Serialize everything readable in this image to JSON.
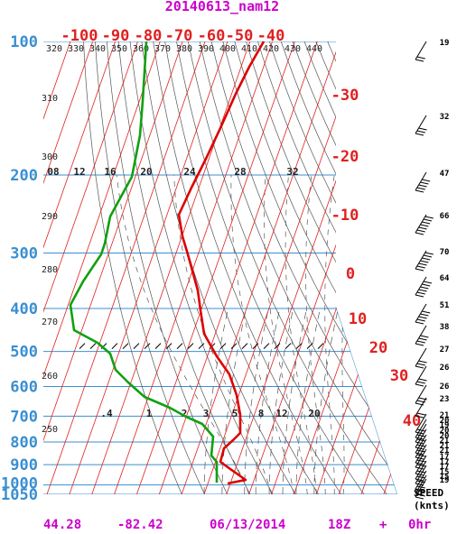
{
  "title": "20140613_nam12",
  "footer": {
    "lat": "44.28",
    "lon": "-82.42",
    "date": "06/13/2014",
    "hour": "18Z",
    "plus": "+",
    "fhr": "0hr"
  },
  "speed_label": [
    "SPEED",
    "(knts)"
  ],
  "colors": {
    "title": "#cc00cc",
    "pressure_axis": "#3a8fd0",
    "isotherm": "#e02020",
    "temperature": "#dd0000",
    "dewpoint": "#11a011",
    "dry_adiabat": "#555555",
    "isobar": "#3a8fd0",
    "mixing_ratio": "#555555",
    "moist_adiabat": "#555555"
  },
  "chart_data": {
    "type": "line",
    "title": "20140613_nam12",
    "y_axis": {
      "label": "pressure",
      "units": "hPa",
      "scale": "log",
      "ticks": [
        100,
        200,
        300,
        400,
        500,
        600,
        700,
        800,
        900,
        1000,
        1050
      ]
    },
    "temperature_ticks": [
      -100,
      -90,
      -80,
      -70,
      -60,
      -50,
      -40,
      -30,
      -20,
      -10,
      0,
      10,
      20,
      30,
      40
    ],
    "theta_labels": [
      320,
      330,
      340,
      350,
      360,
      370,
      380,
      390,
      400,
      410,
      420,
      430,
      440
    ],
    "theta_side_labels": [
      310,
      300,
      290,
      280,
      270,
      260,
      250
    ],
    "mixing_ratio_top_labels": [
      "08",
      "12",
      "16",
      "20",
      "24",
      "28",
      "32"
    ],
    "mixing_ratio_bottom_labels": [
      ".4",
      "1",
      "2",
      "3",
      "5",
      "8",
      "12",
      "20"
    ],
    "series": [
      {
        "name": "temperature",
        "points": [
          {
            "p": 100,
            "t": -52
          },
          {
            "p": 150,
            "t": -54
          },
          {
            "p": 200,
            "t": -57
          },
          {
            "p": 230,
            "t": -60
          },
          {
            "p": 250,
            "t": -61
          },
          {
            "p": 280,
            "t": -58
          },
          {
            "p": 300,
            "t": -54
          },
          {
            "p": 400,
            "t": -35
          },
          {
            "p": 450,
            "t": -27
          },
          {
            "p": 500,
            "t": -19
          },
          {
            "p": 600,
            "t": -9
          },
          {
            "p": 650,
            "t": -5
          },
          {
            "p": 700,
            "t": -1
          },
          {
            "p": 750,
            "t": 3
          },
          {
            "p": 780,
            "t": 5
          },
          {
            "p": 800,
            "t": 5
          },
          {
            "p": 850,
            "t": 8
          },
          {
            "p": 900,
            "t": 12
          },
          {
            "p": 930,
            "t": 16
          },
          {
            "p": 960,
            "t": 18
          },
          {
            "p": 980,
            "t": 24
          },
          {
            "p": 1000,
            "t": 22
          },
          {
            "p": 1005,
            "t": 19
          }
        ]
      },
      {
        "name": "dewpoint",
        "points": [
          {
            "p": 100,
            "t": -70
          },
          {
            "p": 150,
            "t": -71
          },
          {
            "p": 200,
            "t": -68
          },
          {
            "p": 250,
            "t": -73
          },
          {
            "p": 300,
            "t": -74
          },
          {
            "p": 350,
            "t": -77
          },
          {
            "p": 400,
            "t": -76
          },
          {
            "p": 450,
            "t": -70
          },
          {
            "p": 500,
            "t": -58
          },
          {
            "p": 600,
            "t": -34
          },
          {
            "p": 650,
            "t": -19
          },
          {
            "p": 700,
            "t": -9
          },
          {
            "p": 750,
            "t": -4
          },
          {
            "p": 800,
            "t": 0
          },
          {
            "p": 850,
            "t": 2
          },
          {
            "p": 900,
            "t": 5
          },
          {
            "p": 950,
            "t": 9
          },
          {
            "p": 1000,
            "t": 12
          },
          {
            "p": 1005,
            "t": 12
          }
        ]
      }
    ],
    "wind_barbs": {
      "speeds_knts": [
        19,
        32,
        47,
        66,
        70,
        64,
        51,
        38,
        27,
        26,
        26,
        23,
        21,
        20,
        19,
        20,
        20,
        21,
        21,
        21,
        17,
        17,
        17,
        15,
        15,
        19
      ],
      "pressures": [
        100,
        150,
        200,
        250,
        300,
        350,
        400,
        450,
        500,
        550,
        600,
        650,
        700,
        725,
        750,
        775,
        800,
        825,
        850,
        875,
        900,
        925,
        950,
        975,
        1000,
        1005
      ]
    }
  }
}
